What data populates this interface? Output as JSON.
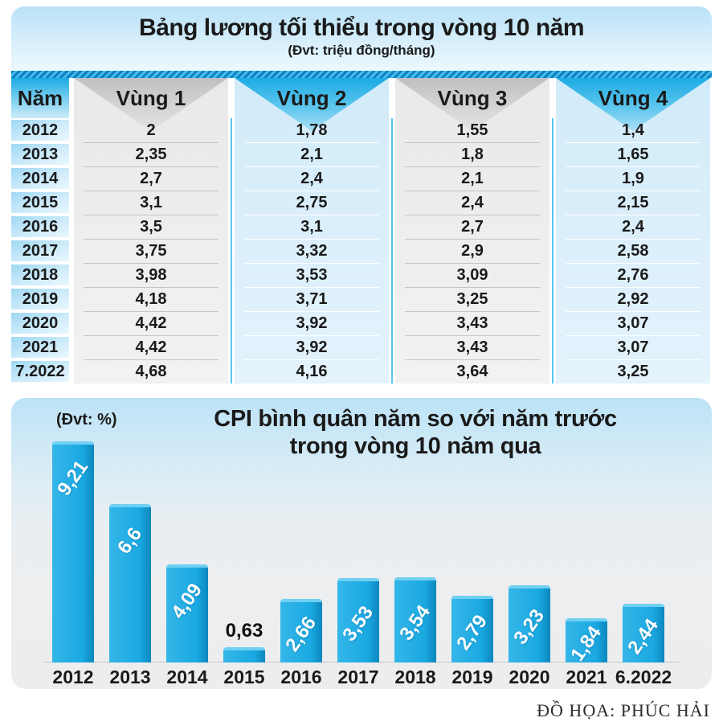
{
  "table_panel": {
    "title": "Bảng lương tối thiểu trong vòng 10 năm",
    "subtitle": "(Đvt: triệu đồng/tháng)",
    "columns": [
      "Năm",
      "Vùng 1",
      "Vùng 2",
      "Vùng 3",
      "Vùng 4"
    ],
    "rows": [
      {
        "year": "2012",
        "v1": "2",
        "v2": "1,78",
        "v3": "1,55",
        "v4": "1,4"
      },
      {
        "year": "2013",
        "v1": "2,35",
        "v2": "2,1",
        "v3": "1,8",
        "v4": "1,65"
      },
      {
        "year": "2014",
        "v1": "2,7",
        "v2": "2,4",
        "v3": "2,1",
        "v4": "1,9"
      },
      {
        "year": "2015",
        "v1": "3,1",
        "v2": "2,75",
        "v3": "2,4",
        "v4": "2,15"
      },
      {
        "year": "2016",
        "v1": "3,5",
        "v2": "3,1",
        "v3": "2,7",
        "v4": "2,4"
      },
      {
        "year": "2017",
        "v1": "3,75",
        "v2": "3,32",
        "v3": "2,9",
        "v4": "2,58"
      },
      {
        "year": "2018",
        "v1": "3,98",
        "v2": "3,53",
        "v3": "3,09",
        "v4": "2,76"
      },
      {
        "year": "2019",
        "v1": "4,18",
        "v2": "3,71",
        "v3": "3,25",
        "v4": "2,92"
      },
      {
        "year": "2020",
        "v1": "4,42",
        "v2": "3,92",
        "v3": "3,43",
        "v4": "3,07"
      },
      {
        "year": "2021",
        "v1": "4,42",
        "v2": "3,92",
        "v3": "3,43",
        "v4": "3,07"
      },
      {
        "year": "7.2022",
        "v1": "4,68",
        "v2": "4,16",
        "v3": "3,64",
        "v4": "3,25"
      }
    ]
  },
  "chart_panel": {
    "unit_label": "(Đvt: %)",
    "title_lines": [
      "CPI bình quân năm so với năm trước",
      "trong vòng 10 năm qua"
    ]
  },
  "chart_data": {
    "type": "bar",
    "title": "CPI bình quân năm so với năm trước trong vòng 10 năm qua",
    "ylabel": "(Đvt: %)",
    "xlabel": "",
    "ylim": [
      0,
      9.5
    ],
    "grid": false,
    "legend": "none",
    "categories": [
      "2012",
      "2013",
      "2014",
      "2015",
      "2016",
      "2017",
      "2018",
      "2019",
      "2020",
      "2021",
      "6.2022"
    ],
    "values": [
      9.21,
      6.6,
      4.09,
      0.63,
      2.66,
      3.53,
      3.54,
      2.79,
      3.23,
      1.84,
      2.44
    ],
    "value_labels": [
      "9,21",
      "6,6",
      "4,09",
      "0,63",
      "2,66",
      "3,53",
      "3,54",
      "2,79",
      "3,23",
      "1,84",
      "2,44"
    ]
  },
  "footer": {
    "credit": "ĐỒ HỌA: PHÚC HẢI"
  },
  "colors": {
    "accent_cyan": "#1babe3",
    "bar_color": "#1aa9e2",
    "band_gray": "#ececec",
    "band_blue": "#d9eefa",
    "strip_dark": "#0e7fc0",
    "text": "#1a1a1a"
  }
}
